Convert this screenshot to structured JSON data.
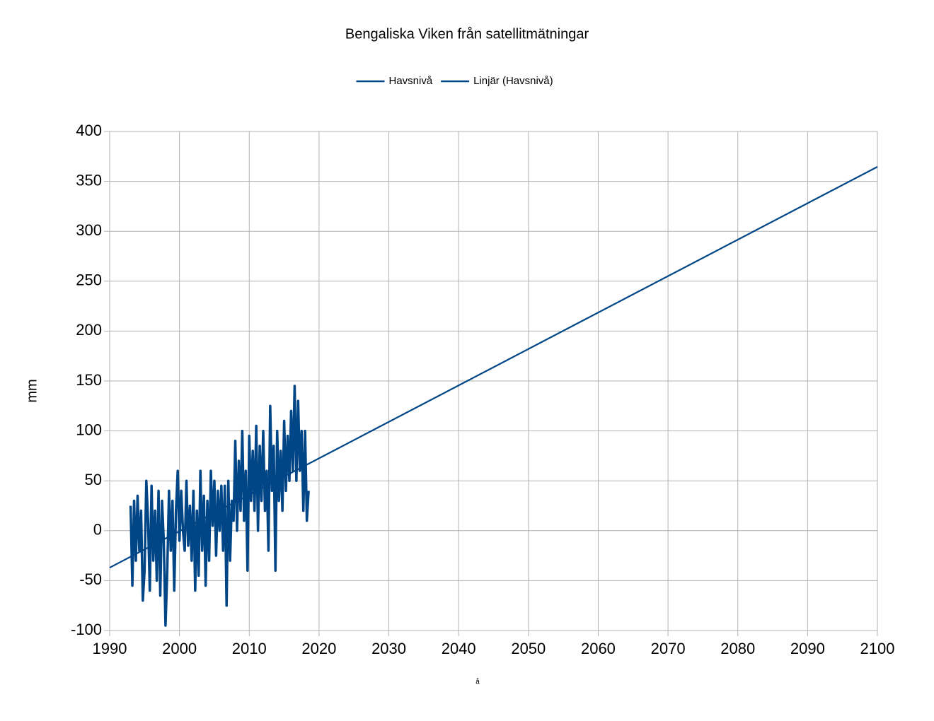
{
  "chart_data": {
    "type": "line",
    "title": "Bengaliska Viken från satellitmätningar",
    "xlabel": "å",
    "ylabel": "mm",
    "legend": "top",
    "grid": true,
    "xlim": [
      1990,
      2100
    ],
    "xticks": [
      1990,
      2000,
      2010,
      2020,
      2030,
      2040,
      2050,
      2060,
      2070,
      2080,
      2090,
      2100
    ],
    "ylim": [
      -100,
      400
    ],
    "yticks": [
      -100,
      -50,
      0,
      50,
      100,
      150,
      200,
      250,
      300,
      350,
      400
    ],
    "series": [
      {
        "name": "Havsnivå",
        "color": "#004586",
        "x": [
          1993,
          1993.25,
          1993.5,
          1993.75,
          1994,
          1994.25,
          1994.5,
          1994.75,
          1995,
          1995.25,
          1995.5,
          1995.75,
          1996,
          1996.25,
          1996.5,
          1996.75,
          1997,
          1997.25,
          1997.5,
          1997.75,
          1998,
          1998.25,
          1998.5,
          1998.75,
          1999,
          1999.25,
          1999.5,
          1999.75,
          2000,
          2000.25,
          2000.5,
          2000.75,
          2001,
          2001.25,
          2001.5,
          2001.75,
          2002,
          2002.25,
          2002.5,
          2002.75,
          2003,
          2003.25,
          2003.5,
          2003.75,
          2004,
          2004.25,
          2004.5,
          2004.75,
          2005,
          2005.25,
          2005.5,
          2005.75,
          2006,
          2006.25,
          2006.5,
          2006.75,
          2007,
          2007.25,
          2007.5,
          2007.75,
          2008,
          2008.25,
          2008.5,
          2008.75,
          2009,
          2009.25,
          2009.5,
          2009.75,
          2010,
          2010.25,
          2010.5,
          2010.75,
          2011,
          2011.25,
          2011.5,
          2011.75,
          2012,
          2012.25,
          2012.5,
          2012.75,
          2013,
          2013.25,
          2013.5,
          2013.75,
          2014,
          2014.25,
          2014.5,
          2014.75,
          2015,
          2015.25,
          2015.5,
          2015.75,
          2016,
          2016.25,
          2016.5,
          2016.75,
          2017,
          2017.25,
          2017.5,
          2017.75,
          2018,
          2018.25,
          2018.5
        ],
        "values": [
          25,
          -55,
          30,
          -30,
          35,
          -20,
          20,
          -70,
          -40,
          50,
          10,
          -60,
          45,
          -30,
          20,
          -50,
          40,
          -65,
          30,
          -10,
          -95,
          -40,
          40,
          -20,
          30,
          -60,
          20,
          60,
          -10,
          40,
          0,
          -20,
          50,
          -15,
          25,
          -30,
          40,
          -60,
          20,
          -45,
          60,
          -20,
          35,
          -55,
          30,
          -30,
          60,
          5,
          50,
          -25,
          40,
          0,
          45,
          -20,
          45,
          -75,
          50,
          -30,
          30,
          10,
          90,
          0,
          70,
          20,
          100,
          10,
          60,
          -40,
          95,
          30,
          80,
          20,
          105,
          0,
          85,
          30,
          100,
          20,
          60,
          -20,
          125,
          40,
          85,
          -40,
          100,
          30,
          80,
          20,
          110,
          40,
          95,
          50,
          120,
          60,
          145,
          50,
          130,
          60,
          100,
          20,
          100,
          10,
          40
        ]
      },
      {
        "name": "Linjär (Havsnivå)",
        "color": "#004586",
        "x": [
          1990,
          2100
        ],
        "values": [
          -37,
          364.6
        ]
      }
    ]
  }
}
